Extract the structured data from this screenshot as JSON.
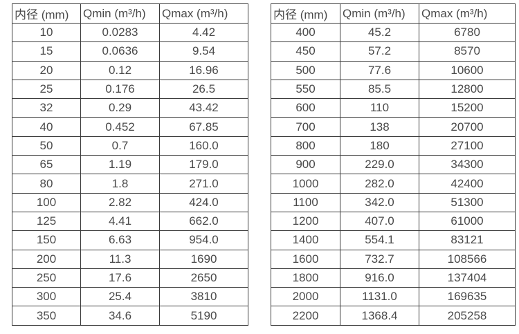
{
  "page": {
    "background_color": "#ffffff",
    "border_color": "#3a3a3a",
    "text_color": "#4a4a4a"
  },
  "tables": [
    {
      "name": "flow-spec-table-small-diameters",
      "headers": [
        "内径 (mm)",
        "Qmin (m³/h)",
        "Qmax (m³/h)"
      ],
      "rows": [
        [
          "10",
          "0.0283",
          "4.42"
        ],
        [
          "15",
          "0.0636",
          "9.54"
        ],
        [
          "20",
          "0.12",
          "16.96"
        ],
        [
          "25",
          "0.176",
          "26.5"
        ],
        [
          "32",
          "0.29",
          "43.42"
        ],
        [
          "40",
          "0.452",
          "67.85"
        ],
        [
          "50",
          "0.7",
          "160.0"
        ],
        [
          "65",
          "1.19",
          "179.0"
        ],
        [
          "80",
          "1.8",
          "271.0"
        ],
        [
          "100",
          "2.82",
          "424.0"
        ],
        [
          "125",
          "4.41",
          "662.0"
        ],
        [
          "150",
          "6.63",
          "954.0"
        ],
        [
          "200",
          "11.3",
          "1690"
        ],
        [
          "250",
          "17.6",
          "2650"
        ],
        [
          "300",
          "25.4",
          "3810"
        ],
        [
          "350",
          "34.6",
          "5190"
        ]
      ]
    },
    {
      "name": "flow-spec-table-large-diameters",
      "headers": [
        "内径 (mm)",
        "Qmin (m³/h)",
        "Qmax (m³/h)"
      ],
      "rows": [
        [
          "400",
          "45.2",
          "6780"
        ],
        [
          "450",
          "57.2",
          "8570"
        ],
        [
          "500",
          "77.6",
          "10600"
        ],
        [
          "550",
          "85.5",
          "12800"
        ],
        [
          "600",
          "110",
          "15200"
        ],
        [
          "700",
          "138",
          "20700"
        ],
        [
          "800",
          "180",
          "27100"
        ],
        [
          "900",
          "229.0",
          "34300"
        ],
        [
          "1000",
          "282.0",
          "42400"
        ],
        [
          "1100",
          "342.0",
          "51300"
        ],
        [
          "1200",
          "407.0",
          "61000"
        ],
        [
          "1400",
          "554.1",
          "83121"
        ],
        [
          "1600",
          "732.7",
          "108566"
        ],
        [
          "1800",
          "916.0",
          "137404"
        ],
        [
          "2000",
          "1131.0",
          "169635"
        ],
        [
          "2200",
          "1368.4",
          "205258"
        ]
      ]
    }
  ]
}
